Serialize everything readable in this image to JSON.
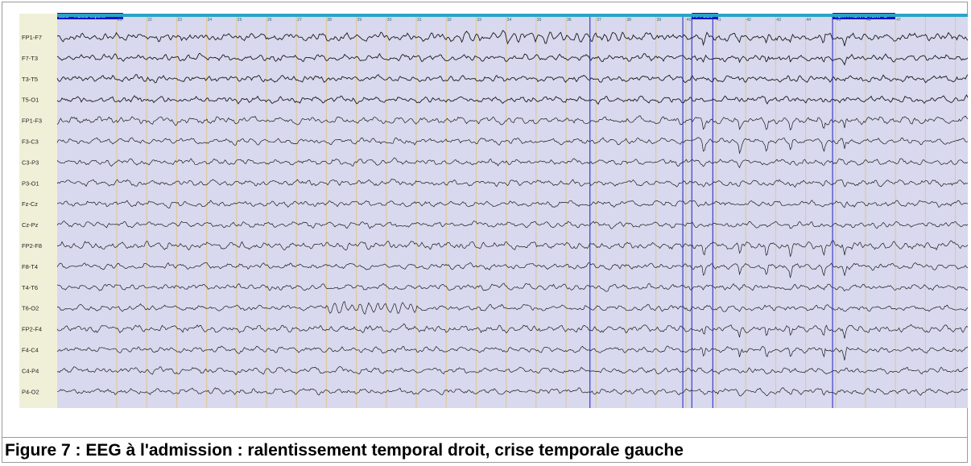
{
  "figure": {
    "caption": "Figure 7 : EEG à l'admission : ralentissement temporal droit, crise temporale gauche"
  },
  "eeg": {
    "channels": [
      "FP1-F7",
      "F7-T3",
      "T3-T5",
      "T5-O1",
      "FP1-F3",
      "F3-C3",
      "C3-P3",
      "P3-O1",
      "Fz-Cz",
      "Cz-Pz",
      "FP2-F8",
      "F8-T4",
      "T4-T6",
      "T6-O2",
      "FP2-F4",
      "F4-C4",
      "C4-P4",
      "P4-O2"
    ],
    "seconds": [
      "21",
      "22",
      "23",
      "24",
      "25",
      "26",
      "27",
      "28",
      "29",
      "30",
      "31",
      "32",
      "33",
      "34",
      "35",
      "36",
      "37",
      "38",
      "39",
      "40",
      "41",
      "42",
      "43",
      "44",
      "45",
      "46",
      "47"
    ],
    "markers": [
      {
        "label": "EEG - VIDEO exporté",
        "second": 20
      },
      {
        "label": "APPEL/2",
        "second": 40.2
      },
      {
        "label": "VOIR FRONTO TEMP G",
        "second": 44.9
      }
    ],
    "colors": {
      "background": "#d8d8ee",
      "label_column": "#f0f0d8",
      "trace": "#1a1a1a",
      "second_gridline": "#e0c890",
      "marker_line": "#2020c0",
      "marker_tag": "#1010d0",
      "time_ruler": "#2aa4c4"
    }
  }
}
